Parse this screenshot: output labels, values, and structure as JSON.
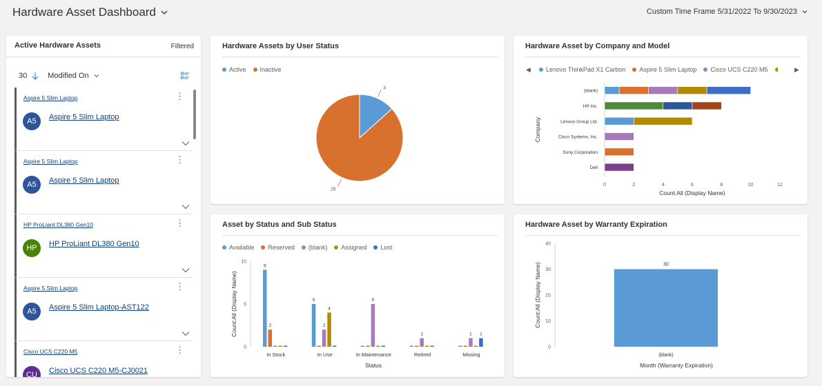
{
  "header": {
    "title": "Hardware Asset Dashboard",
    "timeframe": "Custom Time Frame 5/31/2022 To 9/30/2023"
  },
  "list": {
    "title": "Active Hardware Assets",
    "filtered": "Filtered",
    "count": "30",
    "sort_field": "Modified On",
    "items": [
      {
        "sub": "Aspire 5 Slim Laptop",
        "initials": "A5",
        "title": "Aspire 5 Slim Laptop",
        "color": "#2b579a"
      },
      {
        "sub": "Aspire 5 Slim Laptop",
        "initials": "A5",
        "title": "Aspire 5 Slim Laptop",
        "color": "#2b579a"
      },
      {
        "sub": "HP ProLiant DL380 Gen10",
        "initials": "HP",
        "title": "HP ProLiant DL380 Gen10",
        "color": "#498205"
      },
      {
        "sub": "Aspire 5 Slim Laptop",
        "initials": "A5",
        "title": "Aspire 5 Slim Laptop-AST122",
        "color": "#2b579a"
      },
      {
        "sub": "Cisco UCS C220 M5",
        "initials": "CU",
        "title": "Cisco UCS C220 M5-CJ0021",
        "color": "#5c2e91"
      }
    ]
  },
  "user_status": {
    "title": "Hardware Assets by User Status",
    "legend": [
      {
        "name": "Active",
        "color": "#5b9bd5"
      },
      {
        "name": "Inactive",
        "color": "#d9712e"
      }
    ]
  },
  "company_model": {
    "title": "Hardware Asset by Company and Model",
    "legend": [
      {
        "name": "Lenovo ThinkPad X1 Carbon",
        "color": "#5b9bd5"
      },
      {
        "name": "Aspire 5 Slim Laptop",
        "color": "#d9712e"
      },
      {
        "name": "Cisco UCS C220 M5",
        "color": "#a77bb8"
      },
      {
        "name": "",
        "color": "#b38b00"
      }
    ]
  },
  "status_sub": {
    "title": "Asset by Status and Sub Status",
    "legend": [
      {
        "name": "Available",
        "color": "#5b9bd5"
      },
      {
        "name": "Reserved",
        "color": "#d9712e"
      },
      {
        "name": "(blank)",
        "color": "#a77bb8"
      },
      {
        "name": "Assigned",
        "color": "#b38b00"
      },
      {
        "name": "Lost",
        "color": "#3c6ec9"
      }
    ]
  },
  "warranty": {
    "title": "Hardware Asset by Warranty Expiration"
  },
  "chart_data": [
    {
      "type": "pie",
      "title": "Hardware Assets by User Status",
      "categories": [
        "Active",
        "Inactive"
      ],
      "values": [
        4,
        26
      ],
      "colors": [
        "#5b9bd5",
        "#d9712e"
      ]
    },
    {
      "type": "bar",
      "orientation": "horizontal",
      "stacked": true,
      "title": "Hardware Asset by Company and Model",
      "ylabel": "Company",
      "xlabel": "Count:All (Display Name)",
      "xlim": [
        0,
        12
      ],
      "xticks": [
        0,
        2,
        4,
        6,
        8,
        10,
        12
      ],
      "categories": [
        "(blank)",
        "HP Inc.",
        "Lenovo Group Ltd.",
        "Cisco Systems, Inc.",
        "Sony Corporation",
        "Dell"
      ],
      "rows": [
        [
          {
            "v": 1,
            "c": "#5b9bd5"
          },
          {
            "v": 2,
            "c": "#d9712e"
          },
          {
            "v": 2,
            "c": "#a77bb8"
          },
          {
            "v": 2,
            "c": "#b38b00"
          },
          {
            "v": 3,
            "c": "#3c6ec9"
          }
        ],
        [
          {
            "v": 4,
            "c": "#4f8a3b"
          },
          {
            "v": 2,
            "c": "#2b5797"
          },
          {
            "v": 2,
            "c": "#a2421b"
          }
        ],
        [
          {
            "v": 2,
            "c": "#5b9bd5"
          },
          {
            "v": 4,
            "c": "#b38b00"
          }
        ],
        [
          {
            "v": 2,
            "c": "#a77bb8"
          }
        ],
        [
          {
            "v": 2,
            "c": "#d9712e"
          }
        ],
        [
          {
            "v": 2,
            "c": "#7b3f8c"
          }
        ]
      ]
    },
    {
      "type": "bar",
      "title": "Asset by Status and Sub Status",
      "xlabel": "Status",
      "ylabel": "Count:All (Display Name)",
      "ylim": [
        0,
        10
      ],
      "yticks": [
        0,
        5,
        10
      ],
      "categories": [
        "In Stock",
        "In Use",
        "In Maintenance",
        "Retired",
        "Missing"
      ],
      "series": [
        {
          "name": "Available",
          "color": "#5b9bd5",
          "values": [
            9,
            5,
            0,
            0,
            0
          ]
        },
        {
          "name": "Reserved",
          "color": "#d9712e",
          "values": [
            2,
            0,
            0,
            0,
            0
          ]
        },
        {
          "name": "(blank)",
          "color": "#a77bb8",
          "values": [
            0,
            2,
            5,
            1,
            1
          ]
        },
        {
          "name": "Assigned",
          "color": "#b38b00",
          "values": [
            0,
            4,
            0,
            0,
            0
          ]
        },
        {
          "name": "Lost",
          "color": "#3c6ec9",
          "values": [
            0,
            0,
            0,
            0,
            1
          ]
        }
      ]
    },
    {
      "type": "bar",
      "title": "Hardware Asset by Warranty Expiration",
      "xlabel": "Month (Warranty Expiration)",
      "ylabel": "Count:All (Display Name)",
      "ylim": [
        0,
        40
      ],
      "yticks": [
        0,
        10,
        20,
        30,
        40
      ],
      "categories": [
        "(blank)"
      ],
      "values": [
        30
      ],
      "color": "#5b9bd5"
    }
  ]
}
